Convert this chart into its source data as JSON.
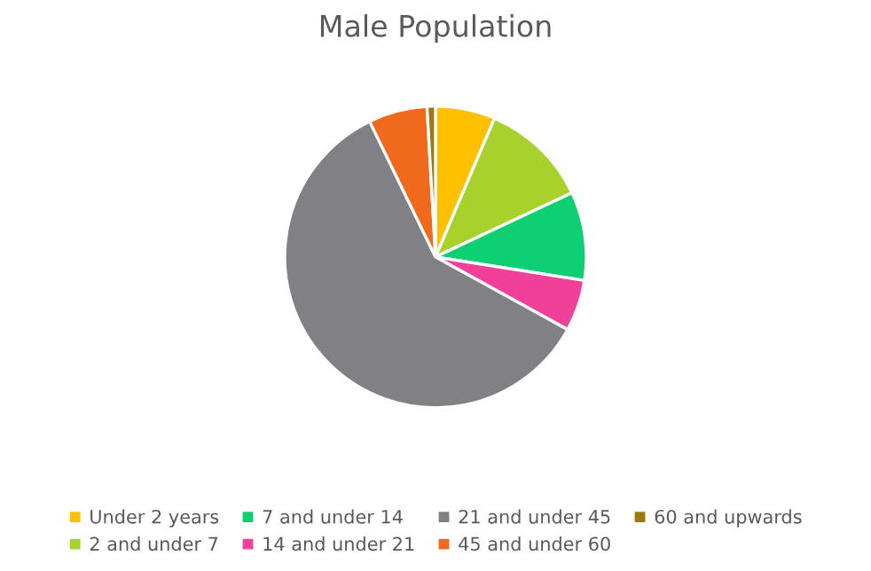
{
  "chart_data": {
    "type": "pie",
    "title": "Male Population",
    "categories": [
      "Under 2 years",
      "2 and under 7",
      "7 and under 14",
      "14 and under 21",
      "21 and under 45",
      "45 and under 60",
      "60 and upwards"
    ],
    "values": [
      6.4,
      11.6,
      9.5,
      5.5,
      59.8,
      6.3,
      0.9
    ],
    "colors": [
      "#ffc000",
      "#a9d12c",
      "#0fcf73",
      "#f0409a",
      "#818085",
      "#f0691c",
      "#9c7a12"
    ],
    "legend": "bottom"
  }
}
